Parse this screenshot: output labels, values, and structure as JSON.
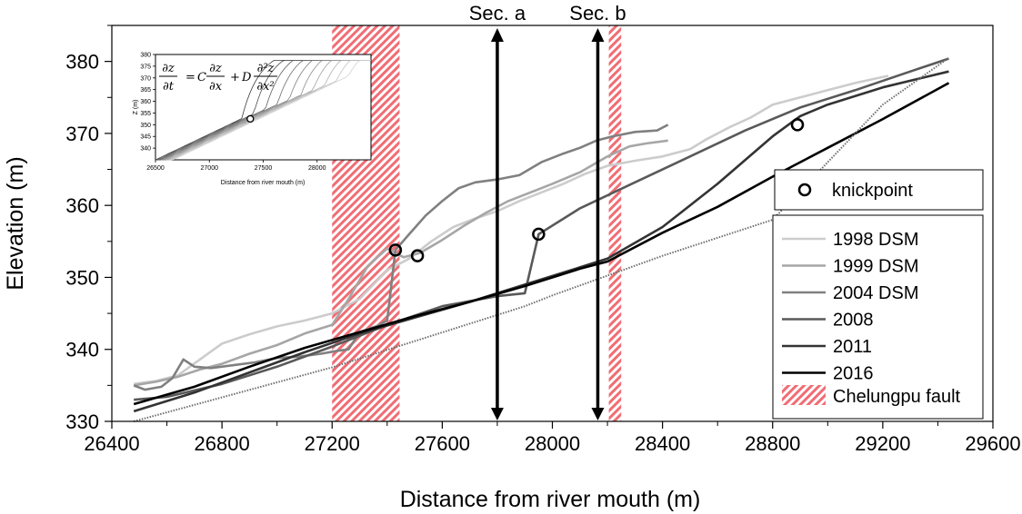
{
  "chart_data": {
    "type": "line",
    "title": "",
    "xlabel": "Distance from river mouth (m)",
    "ylabel": "Elevation (m)",
    "xlim": [
      26400,
      29600
    ],
    "ylim": [
      330,
      385
    ],
    "xticks": [
      26400,
      26800,
      27200,
      27600,
      28000,
      28400,
      28800,
      29200,
      29600
    ],
    "xtick_labels": [
      "26400",
      "26800",
      "27200",
      "27600",
      "28000",
      "28400",
      "28800",
      "29200",
      "29600"
    ],
    "yticks": [
      330,
      340,
      350,
      360,
      370,
      380
    ],
    "ytick_labels": [
      "330",
      "340",
      "350",
      "360",
      "370",
      "380"
    ],
    "grid": false,
    "legend_position": "right",
    "series": [
      {
        "name": "1998 DSM",
        "color": "#cccccc",
        "points": [
          [
            26480,
            335.2
          ],
          [
            26560,
            335.6
          ],
          [
            26640,
            336.4
          ],
          [
            26720,
            338.6
          ],
          [
            26800,
            340.8
          ],
          [
            26900,
            342.1
          ],
          [
            27000,
            343.2
          ],
          [
            27100,
            344.0
          ],
          [
            27200,
            345.0
          ],
          [
            27300,
            347.0
          ],
          [
            27400,
            351.0
          ],
          [
            27480,
            352.6
          ],
          [
            27560,
            355.0
          ],
          [
            27640,
            357.0
          ],
          [
            27720,
            358.2
          ],
          [
            27800,
            359.2
          ],
          [
            27880,
            360.6
          ],
          [
            27960,
            361.8
          ],
          [
            28040,
            363.0
          ],
          [
            28120,
            364.4
          ],
          [
            28200,
            365.5
          ],
          [
            28300,
            366.2
          ],
          [
            28400,
            366.8
          ],
          [
            28500,
            367.8
          ],
          [
            28560,
            369.2
          ],
          [
            28640,
            370.8
          ],
          [
            28720,
            372.2
          ],
          [
            28800,
            374.0
          ],
          [
            28900,
            375.0
          ],
          [
            29000,
            376.0
          ],
          [
            29100,
            377.0
          ],
          [
            29220,
            378.0
          ]
        ]
      },
      {
        "name": "1999 DSM",
        "color": "#a6a6a6",
        "points": [
          [
            26480,
            335.0
          ],
          [
            26560,
            335.5
          ],
          [
            26640,
            336.2
          ],
          [
            26720,
            337.2
          ],
          [
            26800,
            338.0
          ],
          [
            26900,
            339.4
          ],
          [
            27000,
            340.6
          ],
          [
            27100,
            342.2
          ],
          [
            27200,
            343.4
          ],
          [
            27260,
            347.0
          ],
          [
            27330,
            351.6
          ],
          [
            27400,
            354.0
          ],
          [
            27460,
            352.8
          ],
          [
            27520,
            353.4
          ],
          [
            27600,
            355.2
          ],
          [
            27680,
            357.2
          ],
          [
            27760,
            359.0
          ],
          [
            27840,
            360.6
          ],
          [
            27920,
            361.8
          ],
          [
            28000,
            363.0
          ],
          [
            28100,
            364.6
          ],
          [
            28200,
            366.8
          ],
          [
            28280,
            368.2
          ],
          [
            28340,
            368.6
          ],
          [
            28420,
            369.0
          ]
        ]
      },
      {
        "name": "2004 DSM",
        "color": "#808080",
        "points": [
          [
            26480,
            335.0
          ],
          [
            26520,
            334.4
          ],
          [
            26580,
            334.8
          ],
          [
            26620,
            336.0
          ],
          [
            26660,
            338.6
          ],
          [
            26700,
            337.6
          ],
          [
            26760,
            337.4
          ],
          [
            26840,
            337.8
          ],
          [
            26920,
            338.2
          ],
          [
            27000,
            338.8
          ],
          [
            27080,
            339.0
          ],
          [
            27160,
            339.4
          ],
          [
            27220,
            339.8
          ],
          [
            27260,
            340.0
          ],
          [
            27300,
            342.4
          ],
          [
            27360,
            343.2
          ],
          [
            27400,
            344.0
          ],
          [
            27430,
            353.8
          ],
          [
            27480,
            356.0
          ],
          [
            27540,
            358.6
          ],
          [
            27600,
            360.6
          ],
          [
            27660,
            362.4
          ],
          [
            27720,
            363.2
          ],
          [
            27800,
            363.6
          ],
          [
            27880,
            364.2
          ],
          [
            27960,
            366.0
          ],
          [
            28040,
            367.2
          ],
          [
            28100,
            368.0
          ],
          [
            28160,
            369.0
          ],
          [
            28220,
            369.6
          ],
          [
            28300,
            370.2
          ],
          [
            28380,
            370.4
          ],
          [
            28420,
            371.2
          ]
        ]
      },
      {
        "name": "2008",
        "color": "#595959",
        "points": [
          [
            26480,
            333.0
          ],
          [
            26600,
            333.4
          ],
          [
            26800,
            335.2
          ],
          [
            27000,
            337.6
          ],
          [
            27200,
            340.4
          ],
          [
            27400,
            343.4
          ],
          [
            27600,
            346.0
          ],
          [
            27800,
            347.4
          ],
          [
            27900,
            347.8
          ],
          [
            27950,
            356.0
          ],
          [
            28100,
            359.6
          ],
          [
            28300,
            363.2
          ],
          [
            28500,
            366.8
          ],
          [
            28700,
            370.4
          ],
          [
            28900,
            373.6
          ],
          [
            29100,
            376.0
          ],
          [
            29300,
            378.6
          ],
          [
            29440,
            380.4
          ]
        ]
      },
      {
        "name": "2011",
        "color": "#333333",
        "points": [
          [
            26480,
            331.4
          ],
          [
            26700,
            334.0
          ],
          [
            26900,
            336.8
          ],
          [
            27100,
            339.6
          ],
          [
            27300,
            342.2
          ],
          [
            27500,
            344.4
          ],
          [
            27700,
            346.6
          ],
          [
            27900,
            349.0
          ],
          [
            28100,
            351.4
          ],
          [
            28200,
            352.6
          ],
          [
            28400,
            357.0
          ],
          [
            28600,
            363.0
          ],
          [
            28800,
            369.6
          ],
          [
            28900,
            372.4
          ],
          [
            29000,
            374.0
          ],
          [
            29200,
            376.4
          ],
          [
            29440,
            378.6
          ]
        ]
      },
      {
        "name": "2016",
        "color": "#000000",
        "points": [
          [
            26480,
            332.4
          ],
          [
            26700,
            334.8
          ],
          [
            26900,
            337.6
          ],
          [
            27100,
            340.2
          ],
          [
            27300,
            342.4
          ],
          [
            27500,
            344.6
          ],
          [
            27700,
            346.6
          ],
          [
            27900,
            348.8
          ],
          [
            28100,
            351.2
          ],
          [
            28200,
            352.2
          ],
          [
            28400,
            356.2
          ],
          [
            28600,
            359.8
          ],
          [
            28800,
            364.0
          ],
          [
            29000,
            368.0
          ],
          [
            29200,
            372.0
          ],
          [
            29440,
            377.0
          ]
        ]
      },
      {
        "name": "",
        "color": "#6e6e6e",
        "dashed": true,
        "points": [
          [
            26480,
            330.0
          ],
          [
            27200,
            337.5
          ],
          [
            27900,
            346.0
          ],
          [
            28000,
            347.5
          ],
          [
            28400,
            353.0
          ],
          [
            28800,
            358.0
          ],
          [
            29200,
            374.0
          ],
          [
            29440,
            380.5
          ]
        ]
      }
    ],
    "knickpoints": {
      "name": "knickpoint",
      "points": [
        [
          27430,
          353.8
        ],
        [
          27510,
          353.0
        ],
        [
          27950,
          356.0
        ],
        [
          28890,
          371.2
        ]
      ]
    },
    "fault_zones": {
      "name": "Chelungpu fault",
      "color": "#f06d75",
      "zones": [
        [
          27200,
          27445
        ],
        [
          28205,
          28250
        ]
      ]
    },
    "sections": [
      {
        "label": "Sec. a",
        "x": 27800
      },
      {
        "label": "Sec. b",
        "x": 28165
      }
    ],
    "inset": {
      "equation_parts": {
        "dz": "∂z",
        "dt": "∂t",
        "eq": "=",
        "c": "C",
        "plus": "+",
        "d": "D",
        "d2z": "∂²z",
        "dx2": "∂x²",
        "dx": "∂x"
      },
      "xlabel": "Distance from river mouth (m)",
      "ylabel": "Z (m)",
      "xlim": [
        26500,
        28500
      ],
      "ylim": [
        335,
        380
      ],
      "xticks": [
        26500,
        27000,
        27500,
        28000
      ],
      "xtick_labels": [
        "26500",
        "27000",
        "27500",
        "28000"
      ],
      "yticks": [
        340,
        345,
        350,
        355,
        360,
        365,
        370,
        375,
        380
      ],
      "ytick_labels": [
        "340",
        "345",
        "350",
        "355",
        "360",
        "365",
        "370",
        "375",
        "380"
      ],
      "knickpoint": [
        27380,
        352.5
      ]
    }
  }
}
